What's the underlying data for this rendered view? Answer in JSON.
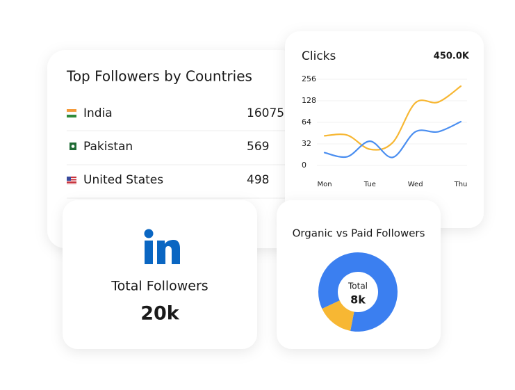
{
  "countries_card": {
    "title": "Top Followers by Countries",
    "rows": [
      {
        "country": "India",
        "followers": 16075
      },
      {
        "country": "Pakistan",
        "followers": 569
      },
      {
        "country": "United States",
        "followers": 498
      }
    ]
  },
  "linkedin_card": {
    "label": "Total Followers",
    "value": "20k"
  },
  "chart_data": [
    {
      "type": "line",
      "title": "Clicks",
      "annotation": "450.0K",
      "categories": [
        "Mon",
        null,
        "Tue",
        null,
        "Wed",
        null,
        "Thu"
      ],
      "series": [
        {
          "color": "#f7b733",
          "values": [
            44,
            45,
            24,
            34,
            122,
            124,
            215
          ]
        },
        {
          "color": "#4a8ef0",
          "values": [
            19,
            13,
            36,
            12,
            50,
            50,
            66
          ]
        }
      ],
      "ylim": [
        0,
        256
      ],
      "yticks": [
        0,
        32,
        64,
        128,
        256
      ],
      "grid": true
    },
    {
      "type": "pie",
      "title": "Organic vs Paid Followers",
      "center_label": "Total",
      "center_value": "8k",
      "values": [
        85,
        15
      ],
      "colors": [
        "#3b7ff0",
        "#f7b733"
      ]
    }
  ]
}
